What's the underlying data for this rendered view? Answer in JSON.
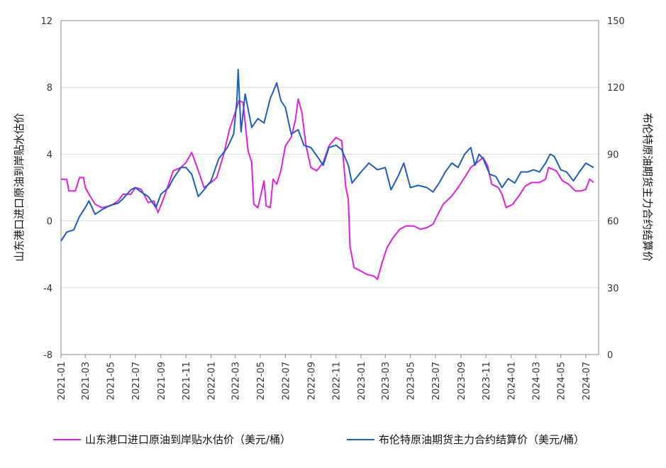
{
  "chart_data": {
    "type": "line",
    "title": "",
    "y_left_label": "山东港口进口原油到岸贴水估价",
    "y_right_label": "布伦特原油期货主力合约结算价",
    "y_left_range": [
      -8,
      12
    ],
    "y_left_ticks": [
      "-8",
      "-4",
      "0",
      "4",
      "8",
      "12"
    ],
    "y_right_range": [
      0,
      150
    ],
    "y_right_ticks": [
      "0",
      "30",
      "60",
      "90",
      "120",
      "150"
    ],
    "x_range": [
      "2021-01",
      "2024-07"
    ],
    "x_tick_labels": [
      "2021-01",
      "2021-03",
      "2021-05",
      "2021-07",
      "2021-09",
      "2021-11",
      "2022-01",
      "2022-03",
      "2022-05",
      "2022-07",
      "2022-09",
      "2022-11",
      "2023-01",
      "2023-03",
      "2023-05",
      "2023-07",
      "2023-09",
      "2023-11",
      "2024-01",
      "2024-03",
      "2024-05",
      "2024-07"
    ],
    "grid": "horizontal",
    "legend_position": "bottom",
    "series": [
      {
        "name": "山东港口进口原油到岸贴水估价（美元/桶）",
        "axis": "left",
        "color": "#e020e0",
        "points": [
          [
            "2021-01-01",
            2.5
          ],
          [
            "2021-01-15",
            2.5
          ],
          [
            "2021-01-20",
            1.8
          ],
          [
            "2021-02-05",
            1.8
          ],
          [
            "2021-02-15",
            2.6
          ],
          [
            "2021-02-25",
            2.6
          ],
          [
            "2021-03-01",
            2.0
          ],
          [
            "2021-03-10",
            1.6
          ],
          [
            "2021-03-25",
            1.0
          ],
          [
            "2021-04-10",
            0.8
          ],
          [
            "2021-05-01",
            0.9
          ],
          [
            "2021-05-20",
            1.2
          ],
          [
            "2021-06-01",
            1.6
          ],
          [
            "2021-06-20",
            1.6
          ],
          [
            "2021-07-01",
            2.0
          ],
          [
            "2021-07-15",
            1.9
          ],
          [
            "2021-08-01",
            1.1
          ],
          [
            "2021-08-15",
            1.2
          ],
          [
            "2021-08-25",
            0.5
          ],
          [
            "2021-09-10",
            1.5
          ],
          [
            "2021-10-01",
            3.0
          ],
          [
            "2021-10-20",
            3.2
          ],
          [
            "2021-11-01",
            3.5
          ],
          [
            "2021-11-15",
            4.1
          ],
          [
            "2021-12-01",
            3.0
          ],
          [
            "2021-12-15",
            2.0
          ],
          [
            "2022-01-01",
            2.3
          ],
          [
            "2022-01-15",
            2.6
          ],
          [
            "2022-02-01",
            4.0
          ],
          [
            "2022-02-15",
            5.5
          ],
          [
            "2022-03-01",
            6.5
          ],
          [
            "2022-03-10",
            7.2
          ],
          [
            "2022-03-20",
            7.1
          ],
          [
            "2022-04-01",
            4.2
          ],
          [
            "2022-04-10",
            3.5
          ],
          [
            "2022-04-15",
            1.0
          ],
          [
            "2022-04-25",
            0.8
          ],
          [
            "2022-05-10",
            2.4
          ],
          [
            "2022-05-15",
            0.9
          ],
          [
            "2022-05-25",
            0.8
          ],
          [
            "2022-06-01",
            2.5
          ],
          [
            "2022-06-10",
            2.2
          ],
          [
            "2022-06-20",
            3.0
          ],
          [
            "2022-07-01",
            4.5
          ],
          [
            "2022-07-15",
            5.0
          ],
          [
            "2022-07-25",
            6.0
          ],
          [
            "2022-08-01",
            7.3
          ],
          [
            "2022-08-10",
            6.5
          ],
          [
            "2022-08-20",
            4.5
          ],
          [
            "2022-09-01",
            3.2
          ],
          [
            "2022-09-15",
            3.0
          ],
          [
            "2022-10-01",
            3.5
          ],
          [
            "2022-10-15",
            4.5
          ],
          [
            "2022-11-01",
            5.0
          ],
          [
            "2022-11-15",
            4.8
          ],
          [
            "2022-11-25",
            2.0
          ],
          [
            "2022-12-01",
            1.3
          ],
          [
            "2022-12-05",
            -1.5
          ],
          [
            "2022-12-15",
            -2.8
          ],
          [
            "2023-01-01",
            -3.0
          ],
          [
            "2023-01-15",
            -3.2
          ],
          [
            "2023-02-01",
            -3.3
          ],
          [
            "2023-02-10",
            -3.5
          ],
          [
            "2023-02-20",
            -2.6
          ],
          [
            "2023-03-05",
            -1.6
          ],
          [
            "2023-03-20",
            -1.0
          ],
          [
            "2023-04-05",
            -0.5
          ],
          [
            "2023-04-20",
            -0.3
          ],
          [
            "2023-05-10",
            -0.3
          ],
          [
            "2023-05-25",
            -0.5
          ],
          [
            "2023-06-10",
            -0.4
          ],
          [
            "2023-06-25",
            -0.2
          ],
          [
            "2023-07-05",
            0.3
          ],
          [
            "2023-07-20",
            1.0
          ],
          [
            "2023-08-10",
            1.5
          ],
          [
            "2023-08-25",
            2.0
          ],
          [
            "2023-09-10",
            2.6
          ],
          [
            "2023-09-25",
            3.2
          ],
          [
            "2023-10-10",
            3.5
          ],
          [
            "2023-10-25",
            3.8
          ],
          [
            "2023-11-05",
            3.3
          ],
          [
            "2023-11-15",
            2.2
          ],
          [
            "2023-12-01",
            2.0
          ],
          [
            "2023-12-10",
            1.6
          ],
          [
            "2023-12-20",
            0.8
          ],
          [
            "2024-01-05",
            1.0
          ],
          [
            "2024-01-20",
            1.5
          ],
          [
            "2024-02-05",
            2.1
          ],
          [
            "2024-02-20",
            2.3
          ],
          [
            "2024-03-10",
            2.3
          ],
          [
            "2024-03-25",
            2.5
          ],
          [
            "2024-04-01",
            3.2
          ],
          [
            "2024-04-20",
            3.0
          ],
          [
            "2024-05-05",
            2.4
          ],
          [
            "2024-05-20",
            2.2
          ],
          [
            "2024-06-05",
            1.8
          ],
          [
            "2024-06-20",
            1.8
          ],
          [
            "2024-07-01",
            1.9
          ],
          [
            "2024-07-10",
            2.5
          ],
          [
            "2024-07-20",
            2.3
          ]
        ]
      },
      {
        "name": "布伦特原油期货主力合约结算价（美元/桶）",
        "axis": "right",
        "color": "#1a5fc0",
        "points": [
          [
            "2021-01-01",
            51
          ],
          [
            "2021-01-15",
            55
          ],
          [
            "2021-02-01",
            56
          ],
          [
            "2021-02-15",
            62
          ],
          [
            "2021-03-01",
            66
          ],
          [
            "2021-03-10",
            69
          ],
          [
            "2021-03-25",
            63
          ],
          [
            "2021-04-10",
            65
          ],
          [
            "2021-05-01",
            67
          ],
          [
            "2021-05-20",
            68
          ],
          [
            "2021-06-01",
            70
          ],
          [
            "2021-06-20",
            74
          ],
          [
            "2021-07-01",
            75
          ],
          [
            "2021-07-15",
            73
          ],
          [
            "2021-08-01",
            71
          ],
          [
            "2021-08-20",
            66
          ],
          [
            "2021-09-01",
            72
          ],
          [
            "2021-09-20",
            75
          ],
          [
            "2021-10-01",
            79
          ],
          [
            "2021-10-20",
            84
          ],
          [
            "2021-11-01",
            84
          ],
          [
            "2021-11-15",
            81
          ],
          [
            "2021-12-01",
            71
          ],
          [
            "2021-12-15",
            74
          ],
          [
            "2022-01-01",
            78
          ],
          [
            "2022-01-20",
            88
          ],
          [
            "2022-02-10",
            93
          ],
          [
            "2022-02-25",
            99
          ],
          [
            "2022-03-05",
            114
          ],
          [
            "2022-03-08",
            128
          ],
          [
            "2022-03-15",
            100
          ],
          [
            "2022-03-25",
            117
          ],
          [
            "2022-04-10",
            102
          ],
          [
            "2022-04-25",
            106
          ],
          [
            "2022-05-10",
            104
          ],
          [
            "2022-05-25",
            115
          ],
          [
            "2022-06-01",
            118
          ],
          [
            "2022-06-10",
            122
          ],
          [
            "2022-06-20",
            114
          ],
          [
            "2022-07-01",
            111
          ],
          [
            "2022-07-15",
            99
          ],
          [
            "2022-08-01",
            101
          ],
          [
            "2022-08-15",
            94
          ],
          [
            "2022-09-01",
            93
          ],
          [
            "2022-09-20",
            88
          ],
          [
            "2022-10-01",
            85
          ],
          [
            "2022-10-15",
            93
          ],
          [
            "2022-11-01",
            94
          ],
          [
            "2022-11-15",
            92
          ],
          [
            "2022-12-01",
            85
          ],
          [
            "2022-12-10",
            77
          ],
          [
            "2023-01-01",
            82
          ],
          [
            "2023-01-20",
            86
          ],
          [
            "2023-02-10",
            83
          ],
          [
            "2023-03-01",
            84
          ],
          [
            "2023-03-15",
            74
          ],
          [
            "2023-04-01",
            80
          ],
          [
            "2023-04-15",
            86
          ],
          [
            "2023-05-01",
            75
          ],
          [
            "2023-05-20",
            76
          ],
          [
            "2023-06-10",
            75
          ],
          [
            "2023-06-25",
            73
          ],
          [
            "2023-07-10",
            77
          ],
          [
            "2023-07-25",
            82
          ],
          [
            "2023-08-10",
            86
          ],
          [
            "2023-08-25",
            84
          ],
          [
            "2023-09-10",
            90
          ],
          [
            "2023-09-25",
            93
          ],
          [
            "2023-10-05",
            85
          ],
          [
            "2023-10-15",
            90
          ],
          [
            "2023-10-25",
            88
          ],
          [
            "2023-11-10",
            81
          ],
          [
            "2023-11-25",
            80
          ],
          [
            "2023-12-10",
            75
          ],
          [
            "2023-12-25",
            79
          ],
          [
            "2024-01-10",
            77
          ],
          [
            "2024-01-25",
            82
          ],
          [
            "2024-02-10",
            82
          ],
          [
            "2024-02-25",
            83
          ],
          [
            "2024-03-10",
            82
          ],
          [
            "2024-03-25",
            86
          ],
          [
            "2024-04-05",
            90
          ],
          [
            "2024-04-15",
            89
          ],
          [
            "2024-05-01",
            83
          ],
          [
            "2024-05-15",
            82
          ],
          [
            "2024-06-01",
            78
          ],
          [
            "2024-06-15",
            82
          ],
          [
            "2024-07-01",
            86
          ],
          [
            "2024-07-10",
            85
          ],
          [
            "2024-07-20",
            84
          ]
        ]
      }
    ]
  }
}
